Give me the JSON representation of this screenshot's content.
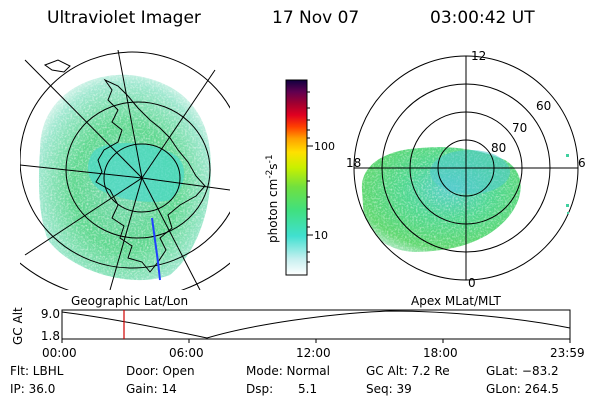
{
  "header": {
    "instrument": "Ultraviolet Imager",
    "date": "17 Nov 07",
    "time": "03:00:42 UT"
  },
  "left_panel": {
    "label": "Geographic Lat/Lon"
  },
  "right_panel": {
    "label": "Apex MLat/MLT",
    "mlt_labels": {
      "top": "12",
      "left": "18",
      "right": "6",
      "bottom": "0"
    },
    "lat_labels": [
      "60",
      "70",
      "80"
    ]
  },
  "colorbar": {
    "unit_label": "photon cm",
    "unit_sup1": "-2",
    "unit_mid": "s",
    "unit_sup2": "-1",
    "tick_labels": [
      "100",
      "10"
    ],
    "scale": "log"
  },
  "altitude_plot": {
    "ylabel": "GC Alt",
    "yticks": [
      "9.0",
      "1.8"
    ],
    "xticks": [
      "00:00",
      "06:00",
      "12:00",
      "18:00",
      "23:59"
    ],
    "marker_time": "03:00",
    "marker_color": "#d00000"
  },
  "info": {
    "filter": "Flt: LBHL",
    "ip": "IP: 36.0",
    "door": "Door: Open",
    "gain": "Gain: 14",
    "mode": "Mode: Normal",
    "dsp_label": "Dsp:",
    "dsp_value": "5.1",
    "gc_alt": "GC Alt: 7.2 Re",
    "seq": "Seq: 39",
    "glat": "GLat: −83.2",
    "glon": "GLon: 264.5"
  }
}
